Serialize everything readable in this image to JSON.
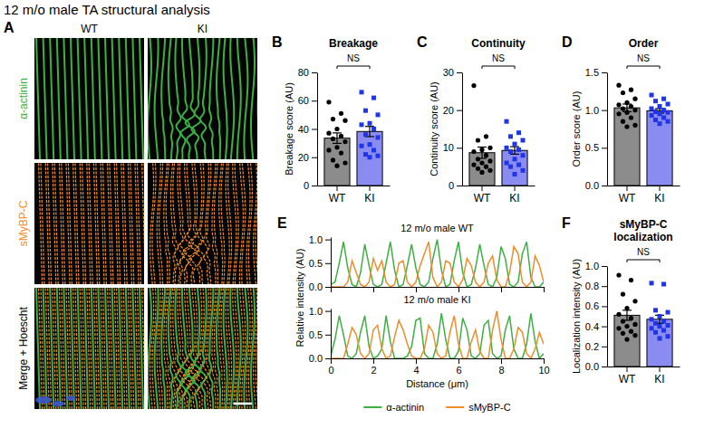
{
  "title": "12 m/o male TA structural analysis",
  "images": {
    "panel": "A",
    "columns": [
      "WT",
      "KI"
    ],
    "rows": [
      "α-actinin",
      "sMyBP-C",
      "Merge + Hoescht"
    ],
    "colors": [
      "#3cb043",
      "#f28c28",
      "#000000"
    ]
  },
  "chart_data": [
    {
      "type": "bar",
      "panel": "B",
      "title": "Breakage",
      "ylabel": "Breakage score (AU)",
      "annotations": [
        "NS"
      ],
      "categories": [
        "WT",
        "KI"
      ],
      "values": [
        33.5,
        38.2
      ],
      "errors": [
        3.7,
        3.6
      ],
      "colors": [
        "#8c8c8c",
        "#8a8cf2"
      ],
      "points": [
        {
          "color": "#000000",
          "marker": "circle",
          "values": [
            59,
            51,
            47,
            46,
            40,
            37,
            35,
            33,
            31,
            27,
            25,
            23,
            18,
            16,
            14
          ]
        },
        {
          "color": "#2036e6",
          "marker": "square",
          "values": [
            66,
            62,
            53,
            50,
            44,
            43,
            40,
            36,
            34,
            29,
            28,
            25,
            22,
            21,
            20
          ]
        }
      ],
      "ylim": [
        0,
        80
      ],
      "yticks": [
        0,
        20,
        40,
        60,
        80
      ]
    },
    {
      "type": "bar",
      "panel": "C",
      "title": "Continuity",
      "ylabel": "Continuity score (AU)",
      "annotations": [
        "NS"
      ],
      "categories": [
        "WT",
        "KI"
      ],
      "values": [
        8.7,
        9.3
      ],
      "errors": [
        1.5,
        1.0
      ],
      "colors": [
        "#8c8c8c",
        "#8a8cf2"
      ],
      "points": [
        {
          "color": "#000000",
          "marker": "circle",
          "values": [
            26.5,
            13,
            12,
            10,
            9.5,
            9,
            8,
            7,
            6.5,
            6,
            5.5,
            5,
            4.5,
            4,
            3.5
          ]
        },
        {
          "color": "#2036e6",
          "marker": "square",
          "values": [
            17,
            14,
            13,
            12,
            11,
            10,
            9.5,
            9,
            8,
            7,
            6,
            5.5,
            5,
            4,
            3
          ]
        }
      ],
      "ylim": [
        0,
        30
      ],
      "yticks": [
        0,
        10,
        20,
        30
      ]
    },
    {
      "type": "bar",
      "panel": "D",
      "title": "Order",
      "ylabel": "Order score (AU)",
      "annotations": [
        "NS"
      ],
      "categories": [
        "WT",
        "KI"
      ],
      "values": [
        1.03,
        0.99
      ],
      "errors": [
        0.05,
        0.03
      ],
      "colors": [
        "#8c8c8c",
        "#8a8cf2"
      ],
      "points": [
        {
          "color": "#000000",
          "marker": "circle",
          "values": [
            1.33,
            1.27,
            1.23,
            1.15,
            1.1,
            1.07,
            1.05,
            1.02,
            1,
            0.97,
            0.95,
            0.9,
            0.85,
            0.8,
            0.78
          ]
        },
        {
          "color": "#2036e6",
          "marker": "square",
          "values": [
            1.2,
            1.15,
            1.12,
            1.08,
            1.05,
            1.02,
            1,
            0.98,
            0.97,
            0.95,
            0.93,
            0.9,
            0.87,
            0.85,
            0.82
          ]
        }
      ],
      "ylim": [
        0,
        1.5
      ],
      "yticks": [
        {
          "value": 0,
          "label": "0.0"
        },
        {
          "value": 0.5,
          "label": "0.5"
        },
        {
          "value": 1,
          "label": "1.0"
        },
        {
          "value": 1.5,
          "label": "1.5"
        }
      ]
    },
    {
      "type": "line",
      "panel": "E",
      "xlabel": "Distance (μm)",
      "ylabel": "Relative intensity (AU)",
      "legend": "bottom",
      "x": [
        0,
        0.2,
        0.4,
        0.6,
        0.8,
        1,
        1.2,
        1.4,
        1.6,
        1.8,
        2,
        2.2,
        2.4,
        2.6,
        2.8,
        3,
        3.2,
        3.4,
        3.6,
        3.8,
        4,
        4.2,
        4.4,
        4.6,
        4.8,
        5,
        5.2,
        5.4,
        5.6,
        5.8,
        6,
        6.2,
        6.4,
        6.6,
        6.8,
        7,
        7.2,
        7.4,
        7.6,
        7.8,
        8,
        8.2,
        8.4,
        8.6,
        8.8,
        9,
        9.2,
        9.4,
        9.6,
        9.8,
        10
      ],
      "xlim": [
        0,
        10
      ],
      "xticks": [
        0,
        2,
        4,
        6,
        8,
        10
      ],
      "ylim": [
        0,
        1.05
      ],
      "yticks": [
        {
          "value": 0,
          "label": "0.0"
        },
        {
          "value": 0.5,
          "label": "0.5"
        },
        {
          "value": 1,
          "label": "1.0"
        }
      ],
      "series": [
        {
          "name": "α-actinin",
          "color": "#3cb043"
        },
        {
          "name": "sMyBP-C",
          "color": "#f28c28"
        }
      ],
      "subplots": [
        {
          "title": "12 m/o male WT",
          "values": [
            [
              0.05,
              0.1,
              0.5,
              0.95,
              0.4,
              0.05,
              0,
              0.3,
              0.9,
              0.45,
              0.05,
              0,
              0.05,
              0.5,
              0.95,
              0.35,
              0,
              0.05,
              0.45,
              0.9,
              0.4,
              0.05,
              0,
              0.1,
              0.6,
              1,
              0.35,
              0,
              0.05,
              0.55,
              0.95,
              0.3,
              0,
              0.05,
              0.4,
              0.9,
              0.45,
              0.05,
              0,
              0.2,
              0.85,
              0.6,
              0.05,
              0,
              0.1,
              0.7,
              0.95,
              0.2,
              0,
              0,
              0.1
            ],
            [
              0,
              0,
              0,
              0,
              0.1,
              0.55,
              0.3,
              0.05,
              0,
              0.1,
              0.6,
              0.35,
              0.55,
              0.1,
              0,
              0.05,
              0.5,
              0.55,
              0.1,
              0,
              0.1,
              0.45,
              0.7,
              0.95,
              0.2,
              0,
              0.1,
              0.55,
              0.5,
              0.1,
              0,
              0.15,
              0.6,
              0.45,
              0.1,
              0,
              0.1,
              0.5,
              0.65,
              0.15,
              0,
              0,
              0.3,
              0.85,
              0.7,
              0.1,
              0,
              0.1,
              0.65,
              0.45,
              0.1
            ]
          ]
        },
        {
          "title": "12 m/o male KI",
          "values": [
            [
              0.05,
              0.4,
              0.9,
              0.5,
              0.05,
              0,
              0.1,
              0.55,
              0.9,
              0.25,
              0,
              0.05,
              0.2,
              0.9,
              0.35,
              0,
              0,
              0,
              0.05,
              0.25,
              0.8,
              0.85,
              0.1,
              0,
              0,
              0.3,
              0.95,
              0.4,
              0,
              0,
              0.15,
              0.85,
              0.6,
              0.05,
              0,
              0.1,
              0.7,
              0.8,
              0.1,
              0,
              0.05,
              0.6,
              0.9,
              0.2,
              0,
              0,
              0.3,
              0.95,
              0.35,
              0,
              0.1
            ],
            [
              0,
              0,
              0,
              0,
              0.3,
              0.65,
              0.5,
              0.1,
              0,
              0.1,
              0.6,
              0.7,
              0.2,
              0,
              0.05,
              0.45,
              0.8,
              0.6,
              0.3,
              0.05,
              0,
              0,
              0.2,
              0.7,
              0.55,
              0.1,
              0,
              0.05,
              0.55,
              0.9,
              0.3,
              0,
              0,
              0.35,
              0.6,
              0.15,
              0,
              0,
              0.6,
              1,
              0.4,
              0,
              0,
              0.2,
              0.65,
              0.55,
              0.1,
              0,
              0.2,
              0.55,
              0.3
            ]
          ]
        }
      ]
    },
    {
      "type": "bar",
      "panel": "F",
      "title": "sMyBP-C localization",
      "ylabel": "Localization intensity (AU)",
      "annotations": [
        "NS"
      ],
      "categories": [
        "WT",
        "KI"
      ],
      "values": [
        0.51,
        0.47
      ],
      "errors": [
        0.05,
        0.04
      ],
      "colors": [
        "#8c8c8c",
        "#8a8cf2"
      ],
      "points": [
        {
          "color": "#000000",
          "marker": "circle",
          "values": [
            0.91,
            0.86,
            0.72,
            0.65,
            0.58,
            0.52,
            0.48,
            0.45,
            0.42,
            0.4,
            0.38,
            0.35,
            0.33,
            0.31,
            0.27
          ]
        },
        {
          "color": "#2036e6",
          "marker": "square",
          "values": [
            0.83,
            0.82,
            0.56,
            0.54,
            0.5,
            0.47,
            0.45,
            0.43,
            0.41,
            0.4,
            0.38,
            0.36,
            0.34,
            0.3,
            0.28
          ]
        }
      ],
      "ylim": [
        0,
        1
      ],
      "yticks": [
        {
          "value": 0,
          "label": "0.0"
        },
        {
          "value": 0.2,
          "label": "0.2"
        },
        {
          "value": 0.4,
          "label": "0.4"
        },
        {
          "value": 0.6,
          "label": "0.6"
        },
        {
          "value": 0.8,
          "label": "0.8"
        },
        {
          "value": 1,
          "label": "1.0"
        }
      ]
    }
  ]
}
